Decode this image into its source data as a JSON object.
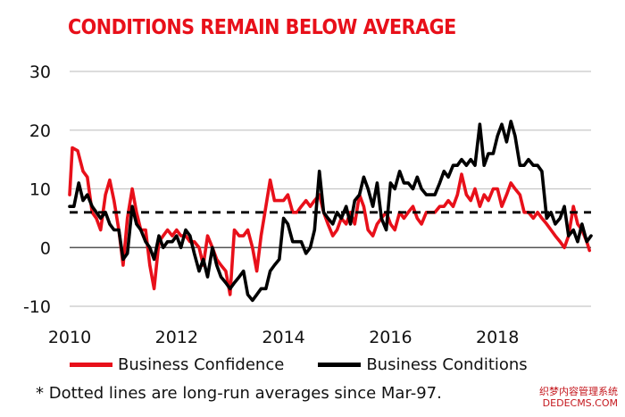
{
  "chart_data": {
    "type": "line",
    "title": "CONDITIONS REMAIN BELOW AVERAGE",
    "xlabel": "",
    "ylabel": "",
    "xlim": [
      2010,
      2019.75
    ],
    "ylim": [
      -10,
      30
    ],
    "x_ticks": [
      "2010",
      "2012",
      "2014",
      "2016",
      "2018"
    ],
    "y_ticks": [
      "30",
      "20",
      "10",
      "0",
      "-10"
    ],
    "grid": true,
    "legend_position": "bottom",
    "reference_line": {
      "value": 6,
      "style": "dashed",
      "color": "#000000"
    },
    "series": [
      {
        "name": "Business Confidence",
        "color": "#e8101a",
        "points": [
          [
            2010.0,
            9
          ],
          [
            2010.05,
            17
          ],
          [
            2010.15,
            16.5
          ],
          [
            2010.25,
            13
          ],
          [
            2010.33,
            12
          ],
          [
            2010.42,
            6
          ],
          [
            2010.5,
            5
          ],
          [
            2010.58,
            3
          ],
          [
            2010.67,
            9
          ],
          [
            2010.75,
            11.5
          ],
          [
            2010.83,
            8
          ],
          [
            2010.92,
            3
          ],
          [
            2011.0,
            -3
          ],
          [
            2011.08,
            5
          ],
          [
            2011.17,
            10
          ],
          [
            2011.25,
            6
          ],
          [
            2011.33,
            3
          ],
          [
            2011.42,
            3
          ],
          [
            2011.5,
            -3
          ],
          [
            2011.58,
            -7
          ],
          [
            2011.67,
            1
          ],
          [
            2011.75,
            2
          ],
          [
            2011.83,
            3
          ],
          [
            2011.92,
            2
          ],
          [
            2012.0,
            3
          ],
          [
            2012.08,
            2
          ],
          [
            2012.17,
            2
          ],
          [
            2012.25,
            1
          ],
          [
            2012.33,
            1
          ],
          [
            2012.42,
            0
          ],
          [
            2012.5,
            -3
          ],
          [
            2012.58,
            2
          ],
          [
            2012.67,
            0
          ],
          [
            2012.75,
            -2
          ],
          [
            2012.83,
            -3
          ],
          [
            2012.92,
            -4
          ],
          [
            2013.0,
            -8
          ],
          [
            2013.08,
            3
          ],
          [
            2013.17,
            2
          ],
          [
            2013.25,
            2
          ],
          [
            2013.33,
            3
          ],
          [
            2013.42,
            0
          ],
          [
            2013.5,
            -4
          ],
          [
            2013.58,
            2
          ],
          [
            2013.67,
            7
          ],
          [
            2013.75,
            11.5
          ],
          [
            2013.83,
            8
          ],
          [
            2013.92,
            8
          ],
          [
            2014.0,
            8
          ],
          [
            2014.08,
            9
          ],
          [
            2014.17,
            6
          ],
          [
            2014.25,
            6
          ],
          [
            2014.33,
            7
          ],
          [
            2014.42,
            8
          ],
          [
            2014.5,
            7
          ],
          [
            2014.58,
            8
          ],
          [
            2014.67,
            9
          ],
          [
            2014.75,
            6
          ],
          [
            2014.83,
            4
          ],
          [
            2014.92,
            2
          ],
          [
            2015.0,
            3
          ],
          [
            2015.08,
            5
          ],
          [
            2015.17,
            4
          ],
          [
            2015.25,
            6
          ],
          [
            2015.33,
            4
          ],
          [
            2015.42,
            9
          ],
          [
            2015.5,
            7
          ],
          [
            2015.58,
            3
          ],
          [
            2015.67,
            2
          ],
          [
            2015.75,
            4
          ],
          [
            2015.83,
            5
          ],
          [
            2015.92,
            6
          ],
          [
            2016.0,
            4
          ],
          [
            2016.08,
            3
          ],
          [
            2016.17,
            6
          ],
          [
            2016.25,
            5
          ],
          [
            2016.33,
            6
          ],
          [
            2016.42,
            7
          ],
          [
            2016.5,
            5
          ],
          [
            2016.58,
            4
          ],
          [
            2016.67,
            6
          ],
          [
            2016.75,
            6
          ],
          [
            2016.83,
            6
          ],
          [
            2016.92,
            7
          ],
          [
            2017.0,
            7
          ],
          [
            2017.08,
            8
          ],
          [
            2017.17,
            7
          ],
          [
            2017.25,
            9
          ],
          [
            2017.33,
            12.5
          ],
          [
            2017.42,
            9
          ],
          [
            2017.5,
            8
          ],
          [
            2017.58,
            10
          ],
          [
            2017.67,
            7
          ],
          [
            2017.75,
            9
          ],
          [
            2017.83,
            8
          ],
          [
            2017.92,
            10
          ],
          [
            2018.0,
            10
          ],
          [
            2018.08,
            7
          ],
          [
            2018.17,
            9
          ],
          [
            2018.25,
            11
          ],
          [
            2018.33,
            10
          ],
          [
            2018.42,
            9
          ],
          [
            2018.5,
            6
          ],
          [
            2018.58,
            6
          ],
          [
            2018.67,
            5
          ],
          [
            2018.75,
            6
          ],
          [
            2018.83,
            5
          ],
          [
            2018.92,
            4
          ],
          [
            2019.0,
            3
          ],
          [
            2019.08,
            2
          ],
          [
            2019.17,
            1
          ],
          [
            2019.25,
            0
          ],
          [
            2019.33,
            2
          ],
          [
            2019.42,
            7
          ],
          [
            2019.5,
            4
          ],
          [
            2019.58,
            3
          ],
          [
            2019.67,
            1
          ],
          [
            2019.72,
            -0.5
          ]
        ]
      },
      {
        "name": "Business Conditions",
        "color": "#000000",
        "points": [
          [
            2010.0,
            7
          ],
          [
            2010.08,
            7
          ],
          [
            2010.17,
            11
          ],
          [
            2010.25,
            8
          ],
          [
            2010.33,
            9
          ],
          [
            2010.42,
            7
          ],
          [
            2010.5,
            6
          ],
          [
            2010.58,
            5
          ],
          [
            2010.67,
            6
          ],
          [
            2010.75,
            4
          ],
          [
            2010.83,
            3
          ],
          [
            2010.92,
            3
          ],
          [
            2011.0,
            -2
          ],
          [
            2011.08,
            -1
          ],
          [
            2011.17,
            7
          ],
          [
            2011.25,
            4
          ],
          [
            2011.33,
            3
          ],
          [
            2011.42,
            1
          ],
          [
            2011.5,
            0
          ],
          [
            2011.58,
            -2
          ],
          [
            2011.67,
            2
          ],
          [
            2011.75,
            0
          ],
          [
            2011.83,
            1
          ],
          [
            2011.92,
            1
          ],
          [
            2012.0,
            2
          ],
          [
            2012.08,
            0
          ],
          [
            2012.17,
            3
          ],
          [
            2012.25,
            2
          ],
          [
            2012.33,
            -1
          ],
          [
            2012.42,
            -4
          ],
          [
            2012.5,
            -2
          ],
          [
            2012.58,
            -5
          ],
          [
            2012.67,
            0
          ],
          [
            2012.75,
            -3
          ],
          [
            2012.83,
            -5
          ],
          [
            2012.92,
            -6
          ],
          [
            2013.0,
            -7
          ],
          [
            2013.08,
            -6
          ],
          [
            2013.17,
            -5
          ],
          [
            2013.25,
            -4
          ],
          [
            2013.33,
            -8
          ],
          [
            2013.42,
            -9
          ],
          [
            2013.5,
            -8
          ],
          [
            2013.58,
            -7
          ],
          [
            2013.67,
            -7
          ],
          [
            2013.75,
            -4
          ],
          [
            2013.83,
            -3
          ],
          [
            2013.92,
            -2
          ],
          [
            2014.0,
            5
          ],
          [
            2014.08,
            4
          ],
          [
            2014.17,
            1
          ],
          [
            2014.25,
            1
          ],
          [
            2014.33,
            1
          ],
          [
            2014.42,
            -1
          ],
          [
            2014.5,
            0
          ],
          [
            2014.58,
            3
          ],
          [
            2014.67,
            13
          ],
          [
            2014.75,
            6
          ],
          [
            2014.83,
            5
          ],
          [
            2014.92,
            4
          ],
          [
            2015.0,
            6
          ],
          [
            2015.08,
            5
          ],
          [
            2015.17,
            7
          ],
          [
            2015.25,
            4
          ],
          [
            2015.33,
            8
          ],
          [
            2015.42,
            9
          ],
          [
            2015.5,
            12
          ],
          [
            2015.58,
            10
          ],
          [
            2015.67,
            7
          ],
          [
            2015.75,
            11
          ],
          [
            2015.83,
            5
          ],
          [
            2015.92,
            3
          ],
          [
            2016.0,
            11
          ],
          [
            2016.08,
            10
          ],
          [
            2016.17,
            13
          ],
          [
            2016.25,
            11
          ],
          [
            2016.33,
            11
          ],
          [
            2016.42,
            10
          ],
          [
            2016.5,
            12
          ],
          [
            2016.58,
            10
          ],
          [
            2016.67,
            9
          ],
          [
            2016.75,
            9
          ],
          [
            2016.83,
            9
          ],
          [
            2016.92,
            11
          ],
          [
            2017.0,
            13
          ],
          [
            2017.08,
            12
          ],
          [
            2017.17,
            14
          ],
          [
            2017.25,
            14
          ],
          [
            2017.33,
            15
          ],
          [
            2017.42,
            14
          ],
          [
            2017.5,
            15
          ],
          [
            2017.58,
            14
          ],
          [
            2017.67,
            21
          ],
          [
            2017.75,
            14
          ],
          [
            2017.83,
            16
          ],
          [
            2017.92,
            16
          ],
          [
            2018.0,
            19
          ],
          [
            2018.08,
            21
          ],
          [
            2018.17,
            18
          ],
          [
            2018.25,
            21.5
          ],
          [
            2018.33,
            19
          ],
          [
            2018.42,
            14
          ],
          [
            2018.5,
            14
          ],
          [
            2018.58,
            15
          ],
          [
            2018.67,
            14
          ],
          [
            2018.75,
            14
          ],
          [
            2018.83,
            13
          ],
          [
            2018.92,
            5
          ],
          [
            2019.0,
            6
          ],
          [
            2019.08,
            4
          ],
          [
            2019.17,
            5
          ],
          [
            2019.25,
            7
          ],
          [
            2019.33,
            2
          ],
          [
            2019.42,
            3
          ],
          [
            2019.5,
            1
          ],
          [
            2019.58,
            4
          ],
          [
            2019.67,
            1
          ],
          [
            2019.75,
            2
          ]
        ]
      }
    ],
    "footnote": "* Dotted lines are long-run averages since Mar-97."
  },
  "watermark": {
    "line1": "织梦内容管理系统",
    "line2": "DEDECMS.COM"
  }
}
